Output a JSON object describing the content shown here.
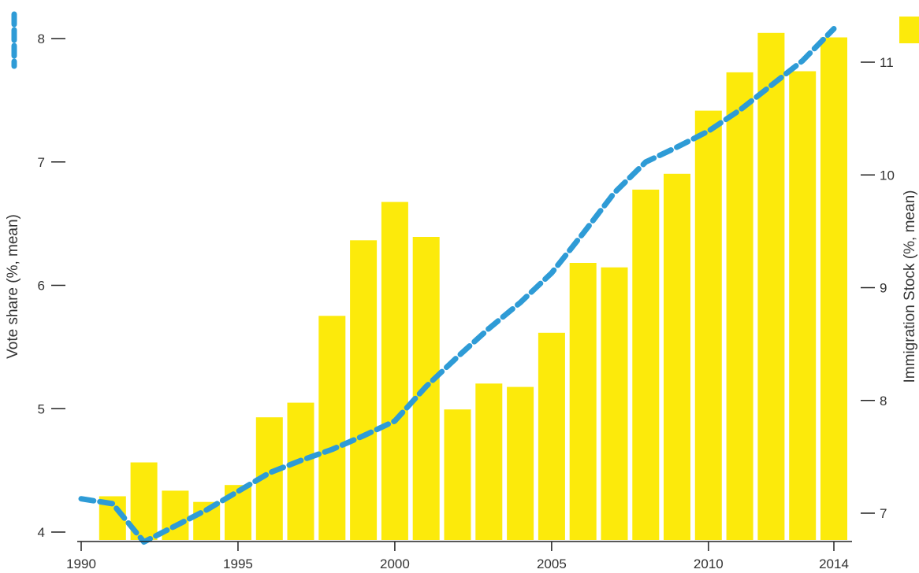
{
  "colors": {
    "bars": "#FCEA0B",
    "line": "#2E9BD6",
    "axis": "#222222",
    "text": "#333333"
  },
  "chart_data": {
    "type": "bar",
    "xlabel": "",
    "ylabel": "Vote share (%, mean)",
    "y2label": "Immigration Stock (%, mean)",
    "x_ticks": [
      1990,
      1995,
      2000,
      2005,
      2010,
      2014
    ],
    "y_ticks": [
      4,
      5,
      6,
      7,
      8
    ],
    "y2_ticks": [
      7,
      8,
      9,
      10,
      11
    ],
    "xlim": [
      1990,
      2014.5
    ],
    "ylim": [
      3.95,
      8.05
    ],
    "y2lim": [
      6.7,
      11.3
    ],
    "legend_position": "top",
    "series": [
      {
        "kind": "bar",
        "axis": "right",
        "x": [
          1991,
          1992,
          1993,
          1994,
          1995,
          1996,
          1997,
          1998,
          1999,
          2000,
          2001,
          2002,
          2003,
          2004,
          2005,
          2006,
          2007,
          2008,
          2009,
          2010,
          2011,
          2012,
          2013,
          2014
        ],
        "values": [
          7.15,
          7.45,
          7.2,
          7.1,
          7.25,
          7.85,
          7.98,
          8.75,
          9.42,
          9.76,
          9.45,
          7.92,
          8.15,
          8.12,
          8.6,
          9.22,
          9.18,
          9.87,
          10.01,
          10.57,
          10.91,
          11.26,
          10.92,
          11.22
        ]
      },
      {
        "kind": "line",
        "axis": "left",
        "style": "dashed",
        "x": [
          1990,
          1991,
          1992,
          1993,
          1994,
          1995,
          1996,
          1997,
          1998,
          1999,
          2000,
          2001,
          2002,
          2003,
          2004,
          2005,
          2006,
          2007,
          2008,
          2009,
          2010,
          2011,
          2012,
          2013,
          2014
        ],
        "values": [
          4.27,
          4.23,
          3.92,
          4.05,
          4.18,
          4.33,
          4.48,
          4.58,
          4.67,
          4.78,
          4.9,
          5.18,
          5.42,
          5.65,
          5.86,
          6.1,
          6.42,
          6.75,
          7.0,
          7.12,
          7.25,
          7.42,
          7.62,
          7.82,
          8.08
        ]
      }
    ]
  }
}
